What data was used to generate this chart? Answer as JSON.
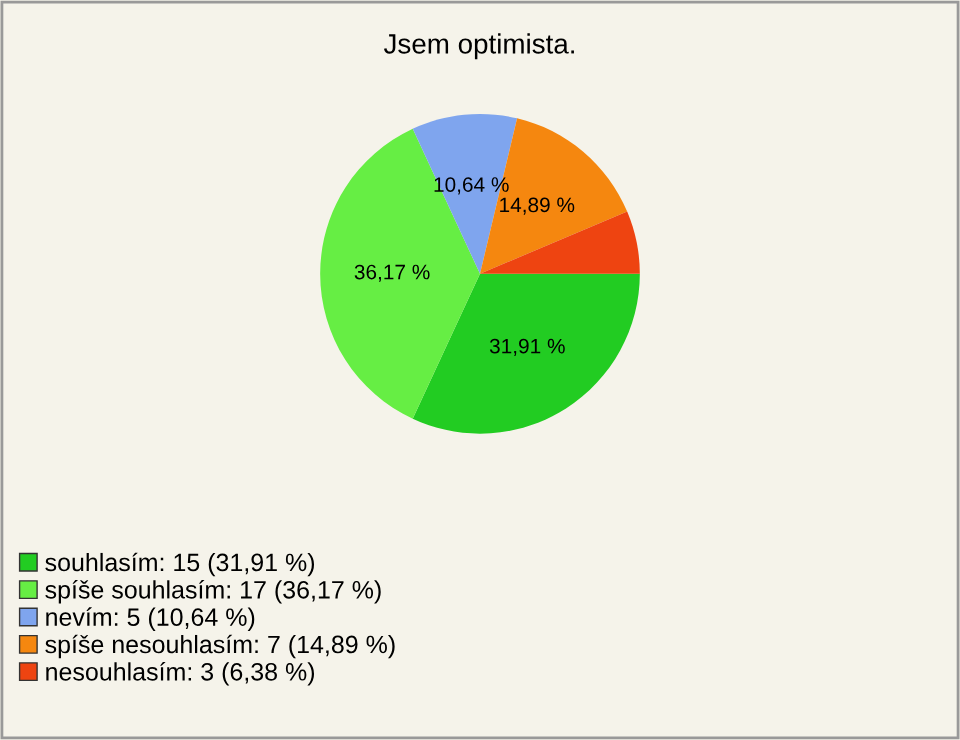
{
  "chart_data": {
    "type": "pie",
    "title": "Jsem optimista.",
    "categories": [
      "souhlasím: 15 (31,91 %)",
      "spíše souhlasím: 17 (36,17 %)",
      "nevím: 5 (10,64 %)",
      "spíše nesouhlasím: 7 (14,89 %)",
      "nesouhlasím: 3 (6,38 %)"
    ],
    "values": [
      31.91,
      36.17,
      10.64,
      14.89,
      6.38
    ],
    "value_labels": [
      "31,91 %",
      "36,17 %",
      "10,64 %",
      "14,89 %",
      null
    ],
    "colors": [
      "#22cc22",
      "#66ee44",
      "#7fa5ee",
      "#f5870f",
      "#ee4411"
    ],
    "legend": "bottom left"
  }
}
